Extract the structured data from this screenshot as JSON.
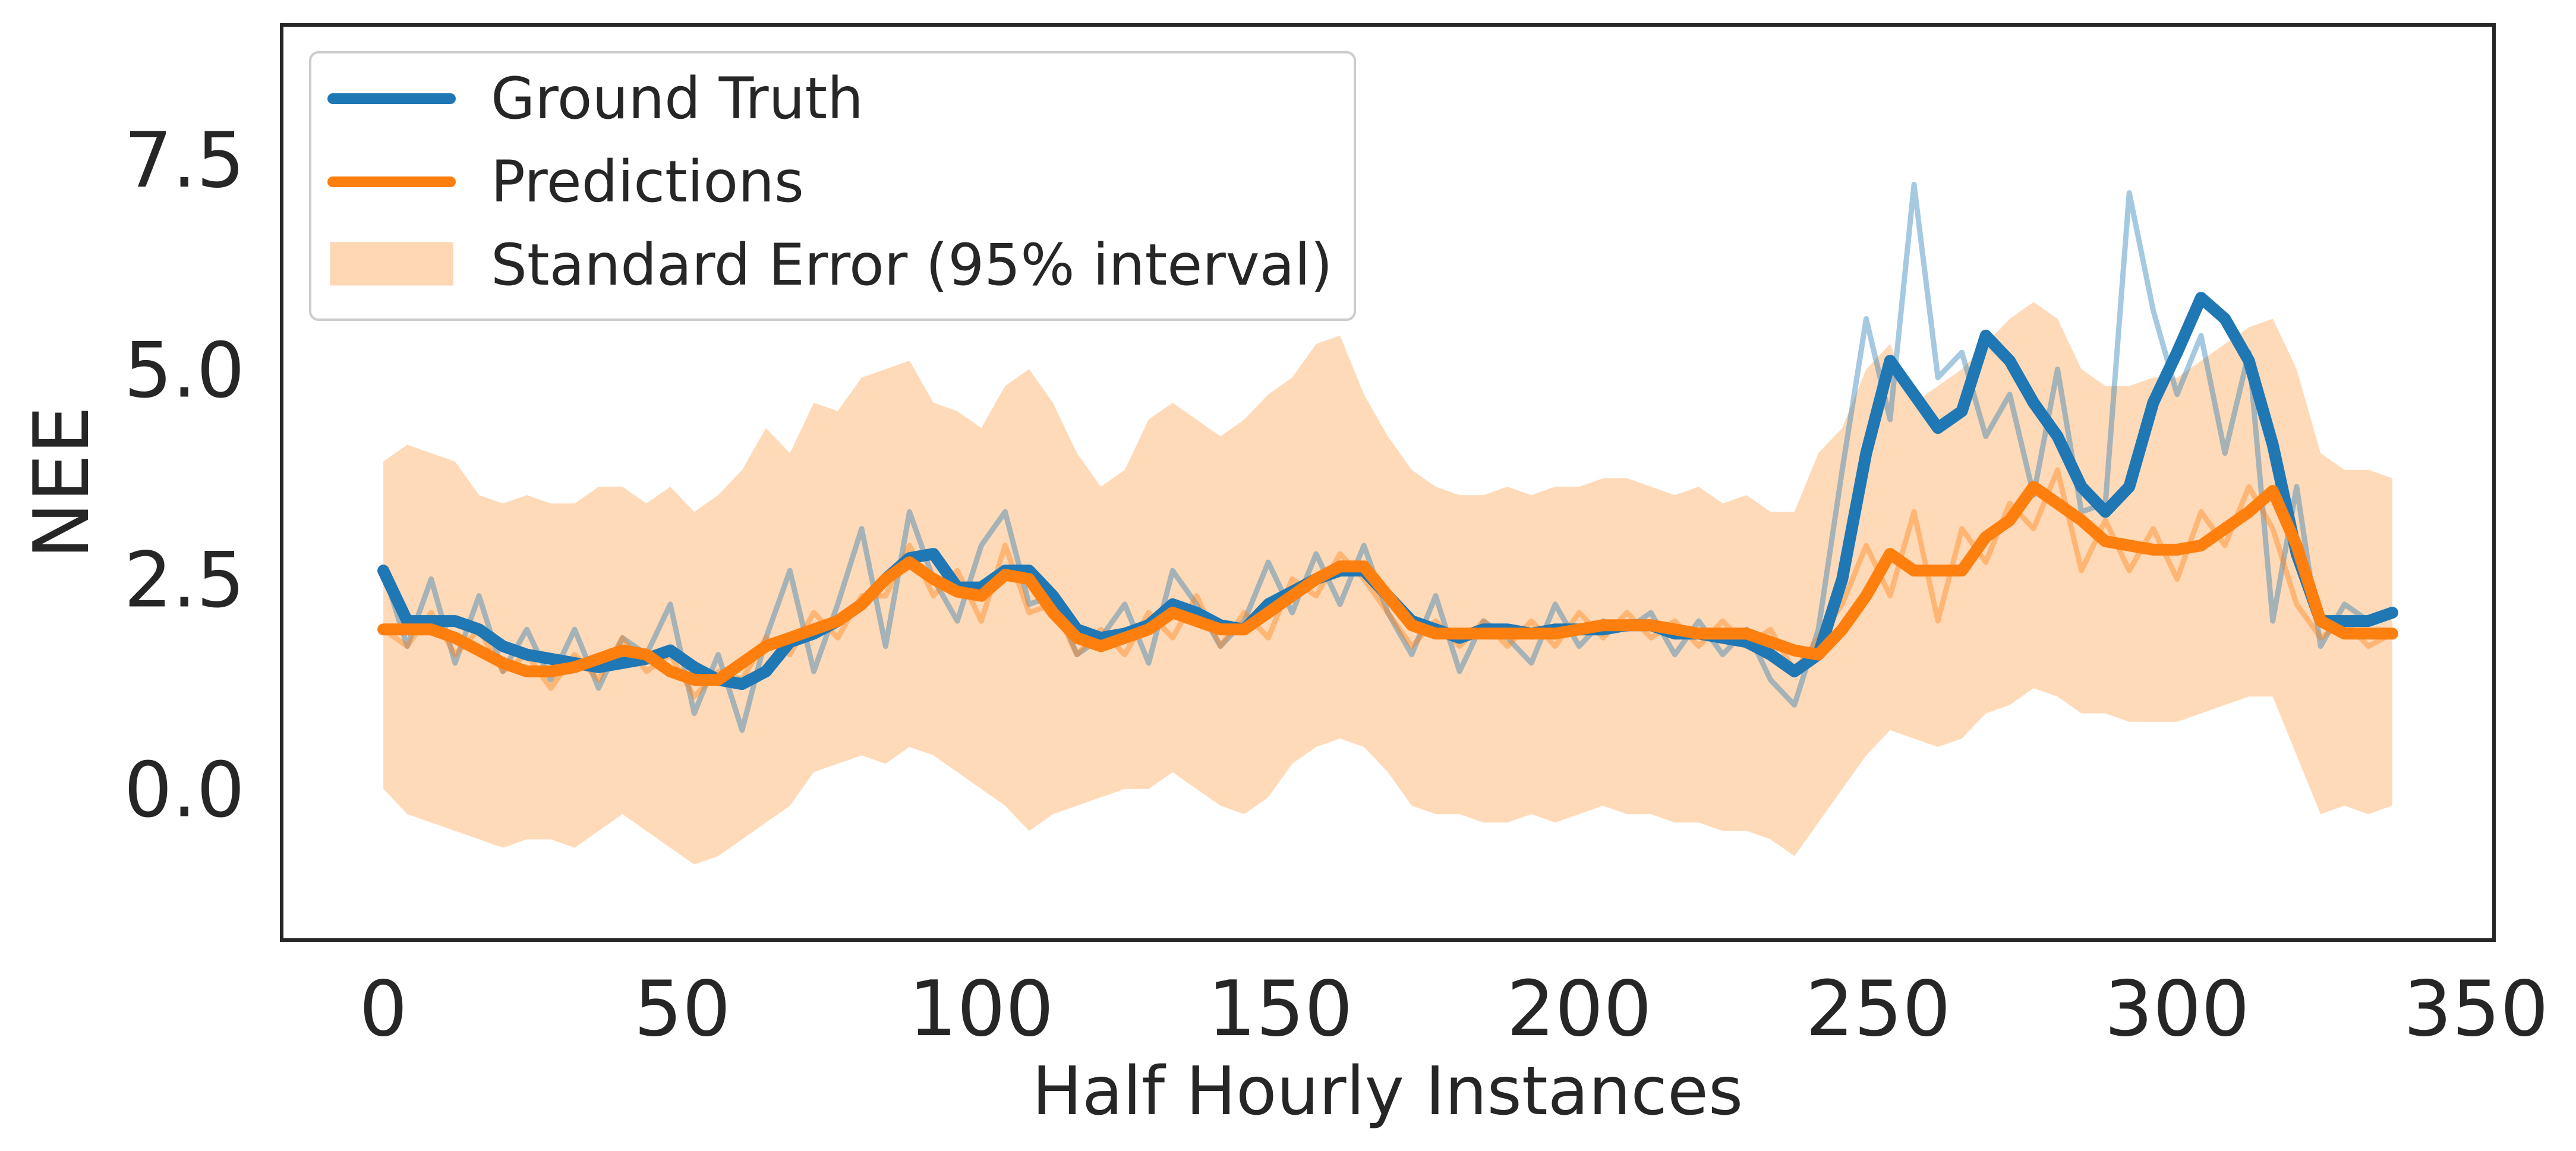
{
  "colors": {
    "ground_truth": "#1f77b4",
    "predictions": "#ff7f0e",
    "band": "#ffd3ad",
    "axes": "#262626"
  },
  "chart_data": {
    "type": "line",
    "title": "",
    "xlabel": "Half Hourly Instances",
    "ylabel": "NEE",
    "xlim": [
      -17,
      353
    ],
    "ylim": [
      -1.8,
      9.1
    ],
    "x_ticks": [
      0,
      50,
      100,
      150,
      200,
      250,
      300,
      350
    ],
    "x_tick_labels": [
      "0",
      "50",
      "100",
      "150",
      "200",
      "250",
      "300",
      "350"
    ],
    "y_ticks": [
      0.0,
      2.5,
      5.0,
      7.5
    ],
    "y_tick_labels": [
      "0.0",
      "2.5",
      "5.0",
      "7.5"
    ],
    "grid": false,
    "legend_position": "top-left",
    "legend": [
      "Ground Truth",
      "Predictions",
      "Standard Error (95% interval)"
    ],
    "x_step": 4,
    "series": [
      {
        "name": "Ground Truth",
        "smoothed": [
          2.6,
          2.0,
          2.0,
          2.0,
          1.9,
          1.7,
          1.6,
          1.55,
          1.5,
          1.45,
          1.5,
          1.55,
          1.65,
          1.45,
          1.3,
          1.25,
          1.4,
          1.75,
          1.85,
          2.0,
          2.2,
          2.5,
          2.75,
          2.8,
          2.4,
          2.4,
          2.6,
          2.6,
          2.3,
          1.9,
          1.8,
          1.85,
          1.95,
          2.2,
          2.1,
          1.95,
          1.9,
          2.2,
          2.35,
          2.5,
          2.6,
          2.6,
          2.3,
          2.0,
          1.9,
          1.8,
          1.9,
          1.9,
          1.85,
          1.9,
          1.9,
          1.9,
          1.95,
          1.95,
          1.85,
          1.85,
          1.8,
          1.75,
          1.6,
          1.4,
          1.6,
          2.5,
          4.0,
          5.1,
          4.7,
          4.3,
          4.5,
          5.4,
          5.1,
          4.6,
          4.2,
          3.6,
          3.3,
          3.6,
          4.6,
          5.2,
          5.85,
          5.6,
          5.1,
          4.1,
          2.8,
          2.0,
          2.0,
          2.0,
          2.1
        ],
        "raw": [
          2.6,
          1.7,
          2.5,
          1.5,
          2.3,
          1.4,
          1.9,
          1.3,
          1.9,
          1.2,
          1.8,
          1.6,
          2.2,
          0.9,
          1.6,
          0.7,
          1.8,
          2.6,
          1.4,
          2.2,
          3.1,
          1.7,
          3.3,
          2.5,
          2.0,
          2.9,
          3.3,
          2.2,
          2.3,
          1.6,
          1.8,
          2.2,
          1.5,
          2.6,
          2.2,
          1.7,
          2.0,
          2.7,
          2.1,
          2.8,
          2.2,
          2.9,
          2.1,
          1.6,
          2.3,
          1.4,
          2.0,
          1.8,
          1.5,
          2.2,
          1.7,
          2.0,
          1.9,
          2.1,
          1.6,
          2.0,
          1.6,
          1.9,
          1.3,
          1.0,
          1.9,
          3.8,
          5.6,
          4.4,
          7.2,
          4.9,
          5.2,
          4.2,
          4.7,
          3.5,
          5.0,
          3.3,
          3.4,
          7.1,
          5.7,
          4.7,
          5.4,
          4.0,
          5.2,
          2.0,
          3.6,
          1.7,
          2.2,
          2.0,
          2.1
        ]
      },
      {
        "name": "Predictions",
        "smoothed": [
          1.9,
          1.9,
          1.9,
          1.8,
          1.65,
          1.5,
          1.4,
          1.4,
          1.45,
          1.55,
          1.65,
          1.6,
          1.4,
          1.3,
          1.3,
          1.5,
          1.7,
          1.8,
          1.9,
          2.0,
          2.2,
          2.5,
          2.7,
          2.5,
          2.35,
          2.3,
          2.55,
          2.5,
          2.1,
          1.8,
          1.7,
          1.8,
          1.9,
          2.1,
          2.0,
          1.9,
          1.9,
          2.1,
          2.3,
          2.5,
          2.65,
          2.65,
          2.3,
          1.95,
          1.85,
          1.85,
          1.85,
          1.85,
          1.85,
          1.85,
          1.9,
          1.95,
          1.95,
          1.95,
          1.9,
          1.85,
          1.85,
          1.85,
          1.75,
          1.65,
          1.6,
          1.9,
          2.3,
          2.8,
          2.6,
          2.6,
          2.6,
          3.0,
          3.2,
          3.6,
          3.4,
          3.2,
          2.95,
          2.9,
          2.85,
          2.85,
          2.9,
          3.1,
          3.3,
          3.55,
          2.9,
          2.0,
          1.85,
          1.85,
          1.85
        ],
        "raw": [
          1.9,
          1.7,
          2.1,
          1.6,
          1.9,
          1.4,
          1.6,
          1.2,
          1.6,
          1.3,
          1.8,
          1.4,
          1.6,
          1.1,
          1.4,
          1.3,
          1.8,
          1.6,
          2.1,
          1.8,
          2.3,
          2.3,
          2.9,
          2.3,
          2.6,
          2.0,
          2.9,
          2.1,
          2.2,
          1.6,
          1.9,
          1.6,
          2.1,
          1.8,
          2.3,
          1.7,
          2.1,
          1.8,
          2.5,
          2.3,
          2.8,
          2.5,
          2.1,
          1.7,
          2.0,
          1.7,
          2.0,
          1.7,
          2.0,
          1.7,
          2.1,
          1.8,
          2.1,
          1.8,
          2.0,
          1.7,
          2.0,
          1.7,
          1.9,
          1.4,
          1.8,
          2.2,
          2.9,
          2.3,
          3.3,
          2.0,
          3.1,
          2.7,
          3.4,
          3.1,
          3.8,
          2.6,
          3.2,
          2.6,
          3.1,
          2.5,
          3.3,
          2.9,
          3.6,
          3.1,
          2.2,
          1.8,
          2.0,
          1.7,
          1.85
        ]
      }
    ],
    "band": {
      "name": "Standard Error (95% interval)",
      "upper": [
        3.9,
        4.1,
        4.0,
        3.9,
        3.5,
        3.4,
        3.5,
        3.4,
        3.4,
        3.6,
        3.6,
        3.4,
        3.6,
        3.3,
        3.5,
        3.8,
        4.3,
        4.0,
        4.6,
        4.5,
        4.9,
        5.0,
        5.1,
        4.6,
        4.5,
        4.3,
        4.8,
        5.0,
        4.6,
        4.0,
        3.6,
        3.8,
        4.4,
        4.6,
        4.4,
        4.2,
        4.4,
        4.7,
        4.9,
        5.3,
        5.4,
        4.7,
        4.2,
        3.8,
        3.6,
        3.5,
        3.5,
        3.6,
        3.5,
        3.6,
        3.6,
        3.7,
        3.7,
        3.6,
        3.5,
        3.6,
        3.4,
        3.5,
        3.3,
        3.3,
        4.0,
        4.3,
        5.0,
        5.3,
        4.6,
        4.8,
        5.0,
        5.3,
        5.6,
        5.8,
        5.6,
        5.0,
        4.8,
        4.8,
        4.9,
        4.9,
        5.1,
        5.3,
        5.5,
        5.6,
        5.0,
        4.0,
        3.8,
        3.8,
        3.7
      ],
      "lower": [
        0.0,
        -0.3,
        -0.4,
        -0.5,
        -0.6,
        -0.7,
        -0.6,
        -0.6,
        -0.7,
        -0.5,
        -0.3,
        -0.5,
        -0.7,
        -0.9,
        -0.8,
        -0.6,
        -0.4,
        -0.2,
        0.2,
        0.3,
        0.4,
        0.3,
        0.5,
        0.4,
        0.2,
        0.0,
        -0.2,
        -0.5,
        -0.3,
        -0.2,
        -0.1,
        0.0,
        0.0,
        0.2,
        0.0,
        -0.2,
        -0.3,
        -0.1,
        0.3,
        0.5,
        0.6,
        0.5,
        0.2,
        -0.2,
        -0.3,
        -0.3,
        -0.4,
        -0.4,
        -0.3,
        -0.4,
        -0.3,
        -0.2,
        -0.3,
        -0.3,
        -0.4,
        -0.4,
        -0.5,
        -0.5,
        -0.6,
        -0.8,
        -0.4,
        0.0,
        0.4,
        0.7,
        0.6,
        0.5,
        0.6,
        0.9,
        1.0,
        1.2,
        1.1,
        0.9,
        0.9,
        0.8,
        0.8,
        0.8,
        0.9,
        1.0,
        1.1,
        1.1,
        0.4,
        -0.3,
        -0.2,
        -0.3,
        -0.2
      ]
    }
  }
}
